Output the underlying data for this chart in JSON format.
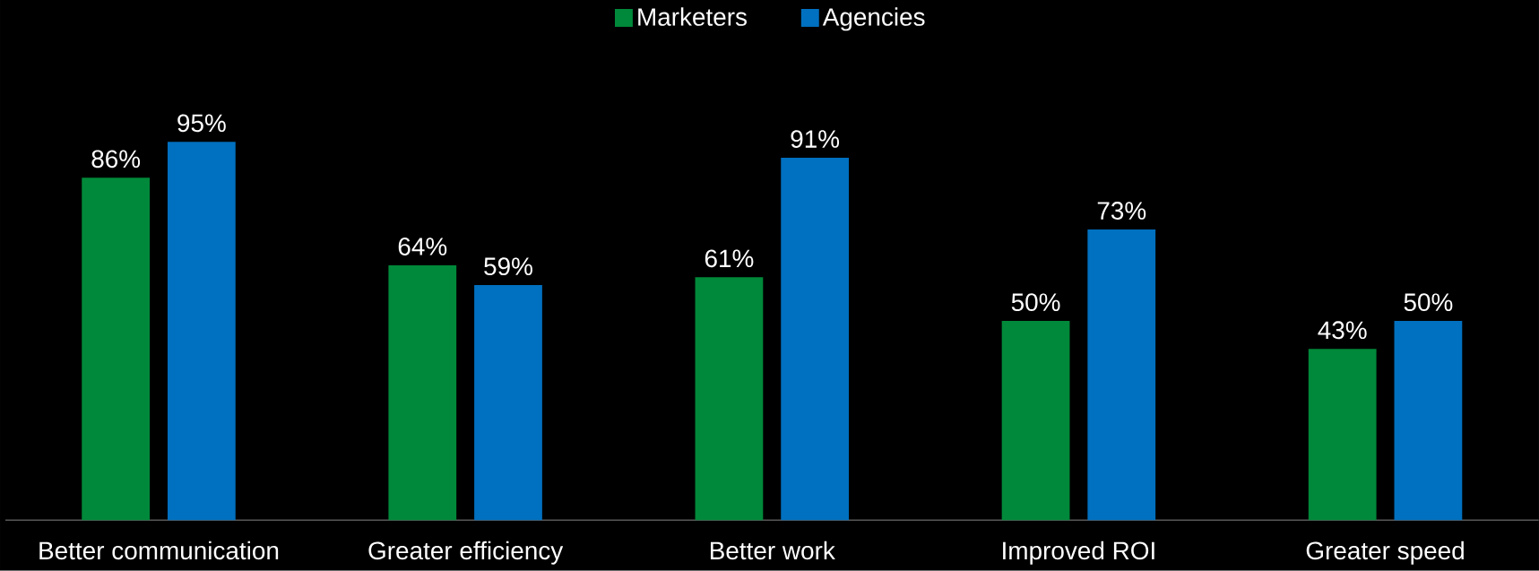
{
  "chart_data": {
    "type": "bar",
    "legend": "top",
    "categories": [
      "Better communication",
      "Greater efficiency",
      "Better work",
      "Improved ROI",
      "Greater speed"
    ],
    "series": [
      {
        "name": "Marketers",
        "color": "#00893a",
        "values": [
          86,
          64,
          61,
          50,
          43
        ],
        "value_labels": [
          "86%",
          "64%",
          "61%",
          "50%",
          "43%"
        ]
      },
      {
        "name": "Agencies",
        "color": "#0070c0",
        "values": [
          95,
          59,
          91,
          73,
          50
        ],
        "value_labels": [
          "95%",
          "59%",
          "91%",
          "73%",
          "50%"
        ]
      }
    ]
  }
}
